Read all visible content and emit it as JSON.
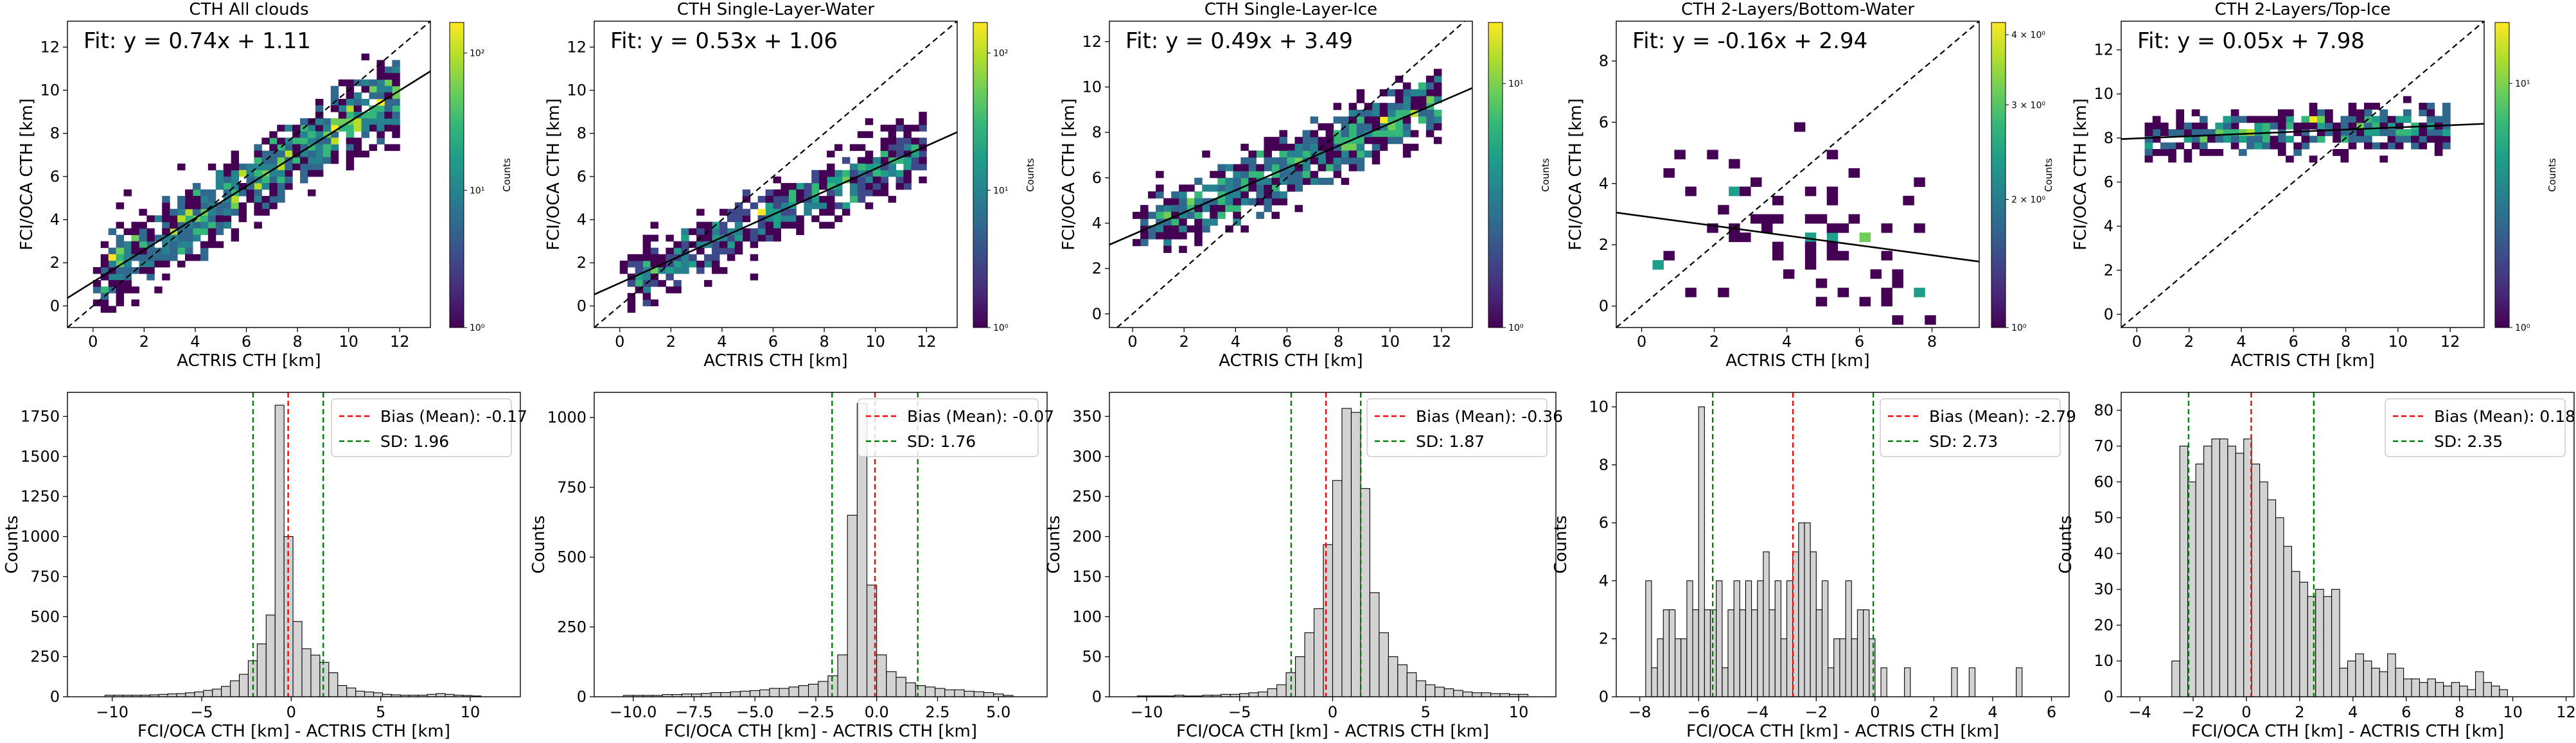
{
  "colors": {
    "viridis": [
      "#440154",
      "#482878",
      "#3e4989",
      "#31688e",
      "#26828e",
      "#1f9e89",
      "#35b779",
      "#6ece58",
      "#b5de2b",
      "#fde725"
    ],
    "fit_line": "#000000",
    "identity_line": "#000000",
    "bias_line": "#ff0000",
    "sd_line": "#008000",
    "hist_fill": "#d3d3d3",
    "hist_edge": "#000000"
  },
  "chart_data": [
    {
      "type": "heatmap",
      "title": "CTH All clouds",
      "xlabel": "ACTRIS CTH [km]",
      "ylabel": "FCI/OCA CTH [km]",
      "xlim": [
        -1,
        13.2
      ],
      "ylim": [
        -1,
        13.2
      ],
      "xticks": [
        0,
        2,
        4,
        6,
        8,
        10,
        12
      ],
      "yticks": [
        0,
        2,
        4,
        6,
        8,
        10,
        12
      ],
      "fit": {
        "slope": 0.74,
        "intercept": 1.11,
        "label": "Fit: y = 0.74x + 1.11"
      },
      "identity_line": true,
      "density": {
        "spread": 1.6,
        "count": 900,
        "seed": 11
      },
      "colorbar": {
        "label": "Counts",
        "scale": "log",
        "ticks": [
          "10⁰",
          "10¹",
          "10²"
        ]
      }
    },
    {
      "type": "heatmap",
      "title": "CTH Single-Layer-Water",
      "xlabel": "ACTRIS CTH [km]",
      "ylabel": "FCI/OCA CTH [km]",
      "xlim": [
        -1,
        13.2
      ],
      "ylim": [
        -1,
        13.2
      ],
      "xticks": [
        0,
        2,
        4,
        6,
        8,
        10,
        12
      ],
      "yticks": [
        0,
        2,
        4,
        6,
        8,
        10,
        12
      ],
      "fit": {
        "slope": 0.53,
        "intercept": 1.06,
        "label": "Fit: y = 0.53x + 1.06"
      },
      "identity_line": true,
      "density": {
        "spread": 1.2,
        "count": 620,
        "seed": 23
      },
      "colorbar": {
        "label": "Counts",
        "scale": "log",
        "ticks": [
          "10⁰",
          "10¹",
          "10²"
        ]
      }
    },
    {
      "type": "heatmap",
      "title": "CTH Single-Layer-Ice",
      "xlabel": "ACTRIS CTH [km]",
      "ylabel": "FCI/OCA CTH [km]",
      "xlim": [
        -0.9,
        13.2
      ],
      "ylim": [
        -0.6,
        12.9
      ],
      "xticks": [
        0,
        2,
        4,
        6,
        8,
        10,
        12
      ],
      "yticks": [
        0,
        2,
        4,
        6,
        8,
        10,
        12
      ],
      "fit": {
        "slope": 0.49,
        "intercept": 3.49,
        "label": "Fit: y = 0.49x + 3.49"
      },
      "identity_line": true,
      "density": {
        "spread": 1.3,
        "count": 700,
        "seed": 37
      },
      "colorbar": {
        "label": "Counts",
        "scale": "log",
        "ticks": [
          "10⁰",
          "10¹"
        ]
      }
    },
    {
      "type": "heatmap",
      "title": "CTH 2-Layers/Bottom-Water",
      "xlabel": "ACTRIS CTH [km]",
      "ylabel": "FCI/OCA CTH [km]",
      "xlim": [
        -0.7,
        9.3
      ],
      "ylim": [
        -0.7,
        9.3
      ],
      "xticks": [
        0,
        2,
        4,
        6,
        8
      ],
      "yticks": [
        0,
        2,
        4,
        6,
        8
      ],
      "fit": {
        "slope": -0.16,
        "intercept": 2.94,
        "label": "Fit: y = -0.16x + 2.94"
      },
      "identity_line": true,
      "density": {
        "spread": 2.5,
        "count": 70,
        "seed": 41
      },
      "colorbar": {
        "label": "Counts",
        "scale": "log",
        "ticks": [
          "10⁰",
          "2 × 10⁰",
          "3 × 10⁰",
          "4 × 10⁰"
        ]
      }
    },
    {
      "type": "heatmap",
      "title": "CTH 2-Layers/Top-Ice",
      "xlabel": "ACTRIS CTH [km]",
      "ylabel": "FCI/OCA CTH [km]",
      "xlim": [
        -0.6,
        13.3
      ],
      "ylim": [
        -0.6,
        13.3
      ],
      "xticks": [
        0,
        2,
        4,
        6,
        8,
        10,
        12
      ],
      "yticks": [
        0,
        2,
        4,
        6,
        8,
        10,
        12
      ],
      "fit": {
        "slope": 0.05,
        "intercept": 7.98,
        "label": "Fit: y = 0.05x + 7.98"
      },
      "identity_line": true,
      "density": {
        "spread": 0.9,
        "count": 380,
        "seed": 53
      },
      "colorbar": {
        "label": "Counts",
        "scale": "log",
        "ticks": [
          "10⁰",
          "10¹"
        ]
      }
    },
    {
      "type": "bar",
      "xlabel": "FCI/OCA CTH [km] - ACTRIS CTH [km]",
      "ylabel": "Counts",
      "xlim": [
        -12.5,
        12.8
      ],
      "ylim": [
        0,
        1900
      ],
      "xticks": [
        -10,
        -5,
        0,
        5,
        10
      ],
      "yticks": [
        0,
        250,
        500,
        750,
        1000,
        1250,
        1500,
        1750
      ],
      "bin_start": -10.4,
      "bin_width": 0.5,
      "values": [
        10,
        10,
        10,
        10,
        10,
        12,
        15,
        18,
        20,
        25,
        30,
        40,
        48,
        65,
        100,
        140,
        225,
        330,
        510,
        1820,
        1000,
        470,
        300,
        260,
        215,
        150,
        70,
        55,
        35,
        30,
        25,
        15,
        12,
        10,
        10,
        10,
        15,
        20,
        15,
        10,
        8,
        5
      ],
      "bias": -0.17,
      "sd": 1.96,
      "legend": [
        "Bias (Mean): -0.17",
        "SD: 1.96"
      ]
    },
    {
      "type": "bar",
      "xlabel": "FCI/OCA CTH [km] - ACTRIS CTH [km]",
      "ylabel": "Counts",
      "xlim": [
        -11.6,
        7.0
      ],
      "ylim": [
        0,
        1090
      ],
      "xticks": [
        -10.0,
        -7.5,
        -5.0,
        -2.5,
        0.0,
        2.5,
        5.0
      ],
      "tick_labels": [
        "−10.0",
        "−7.5",
        "−5.0",
        "−2.5",
        "0.0",
        "2.5",
        "5.0"
      ],
      "bin_start": -10.4,
      "bin_width": 0.4,
      "values": [
        5,
        5,
        5,
        5,
        8,
        8,
        10,
        10,
        12,
        15,
        15,
        18,
        20,
        22,
        25,
        30,
        30,
        35,
        40,
        45,
        55,
        75,
        150,
        650,
        1050,
        400,
        150,
        90,
        70,
        50,
        40,
        35,
        30,
        25,
        25,
        20,
        18,
        15,
        10,
        5
      ],
      "bias": -0.07,
      "sd": 1.76,
      "legend": [
        "Bias (Mean): -0.07",
        "SD: 1.76"
      ]
    },
    {
      "type": "bar",
      "xlabel": "FCI/OCA CTH [km] - ACTRIS CTH [km]",
      "ylabel": "Counts",
      "xlim": [
        -12.0,
        12.0
      ],
      "ylim": [
        0,
        380
      ],
      "xticks": [
        -10,
        -5,
        0,
        5,
        10
      ],
      "bin_start": -10.5,
      "bin_width": 0.5,
      "values": [
        1,
        1,
        1,
        1,
        2,
        1,
        1,
        2,
        2,
        3,
        3,
        4,
        5,
        6,
        10,
        15,
        30,
        50,
        80,
        110,
        190,
        270,
        360,
        355,
        260,
        130,
        80,
        50,
        40,
        30,
        20,
        15,
        12,
        10,
        8,
        6,
        5,
        5,
        4,
        4,
        3,
        3
      ],
      "bias": -0.36,
      "sd": 1.87,
      "legend": [
        "Bias (Mean): -0.36",
        "SD: 1.87"
      ]
    },
    {
      "type": "bar",
      "xlabel": "FCI/OCA CTH [km] - ACTRIS CTH [km]",
      "ylabel": "Counts",
      "xlim": [
        -8.8,
        6.6
      ],
      "ylim": [
        0,
        10.5
      ],
      "xticks": [
        -8,
        -6,
        -4,
        -2,
        0,
        2,
        4,
        6
      ],
      "yticks": [
        0,
        2,
        4,
        6,
        8,
        10
      ],
      "bin_start": -7.8,
      "bin_width": 0.2,
      "values": [
        4,
        1,
        2,
        3,
        3,
        2,
        2,
        4,
        3,
        10,
        3,
        3,
        4,
        1,
        3,
        4,
        3,
        4,
        3,
        4,
        5,
        3,
        4,
        2,
        4,
        5,
        6,
        6,
        5,
        3,
        4,
        1,
        2,
        2,
        4,
        2,
        3,
        3,
        2,
        0,
        1,
        0,
        0,
        0,
        1,
        0,
        0,
        0,
        0,
        0,
        0,
        0,
        1,
        0,
        0,
        1,
        0,
        0,
        0,
        0,
        0,
        0,
        0,
        1,
        0,
        0,
        0,
        0,
        0
      ],
      "bias": -2.79,
      "sd": 2.73,
      "legend": [
        "Bias (Mean): -2.79",
        "SD: 2.73"
      ]
    },
    {
      "type": "bar",
      "xlabel": "FCI/OCA CTH [km] - ACTRIS CTH [km]",
      "ylabel": "Counts",
      "xlim": [
        -4.7,
        12.3
      ],
      "ylim": [
        0,
        85
      ],
      "xticks": [
        -4,
        -2,
        0,
        2,
        4,
        6,
        8,
        10,
        12
      ],
      "yticks": [
        0,
        10,
        20,
        30,
        40,
        50,
        60,
        70,
        80
      ],
      "bin_start": -2.8,
      "bin_width": 0.3,
      "values": [
        10,
        70,
        60,
        65,
        70,
        72,
        72,
        70,
        68,
        72,
        65,
        60,
        55,
        50,
        42,
        35,
        32,
        28,
        30,
        28,
        30,
        8,
        10,
        12,
        10,
        8,
        7,
        12,
        8,
        5,
        5,
        4,
        5,
        4,
        3,
        4,
        3,
        2,
        7,
        4,
        3,
        2
      ],
      "bias": 0.18,
      "sd": 2.35,
      "legend": [
        "Bias (Mean): 0.18",
        "SD: 2.35"
      ]
    }
  ]
}
